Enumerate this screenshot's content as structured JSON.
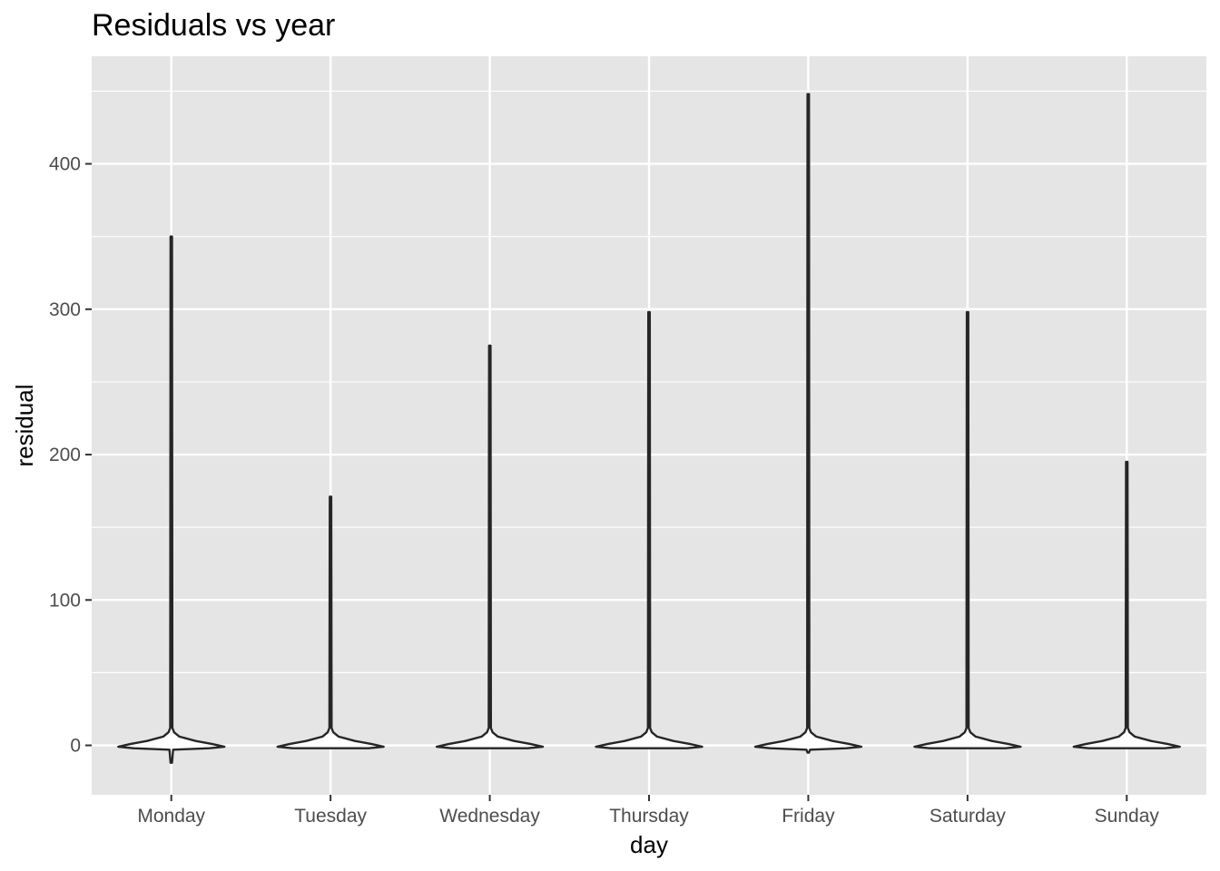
{
  "chart_data": {
    "type": "violin",
    "title": "Residuals vs year",
    "xlabel": "day",
    "ylabel": "residual",
    "categories": [
      "Monday",
      "Tuesday",
      "Wednesday",
      "Thursday",
      "Friday",
      "Saturday",
      "Sunday"
    ],
    "y_ticks": [
      0,
      100,
      200,
      300,
      400
    ],
    "y_tick_labels": [
      "0",
      "100",
      "200",
      "300",
      "400"
    ],
    "ylim": [
      -34,
      474
    ],
    "grid": true,
    "legend": "none",
    "series": [
      {
        "category": "Monday",
        "min": -12,
        "max": 350
      },
      {
        "category": "Tuesday",
        "min": -2,
        "max": 171
      },
      {
        "category": "Wednesday",
        "min": -2,
        "max": 275
      },
      {
        "category": "Thursday",
        "min": -2,
        "max": 298
      },
      {
        "category": "Friday",
        "min": -5,
        "max": 448
      },
      {
        "category": "Saturday",
        "min": -2,
        "max": 298
      },
      {
        "category": "Sunday",
        "min": -2,
        "max": 195
      }
    ],
    "colors": {
      "panel_background": "#e5e5e5",
      "grid_line": "#ffffff",
      "violin_outline": "#262626",
      "violin_fill": "#ffffff",
      "tick_label": "#4d4d4d"
    }
  }
}
